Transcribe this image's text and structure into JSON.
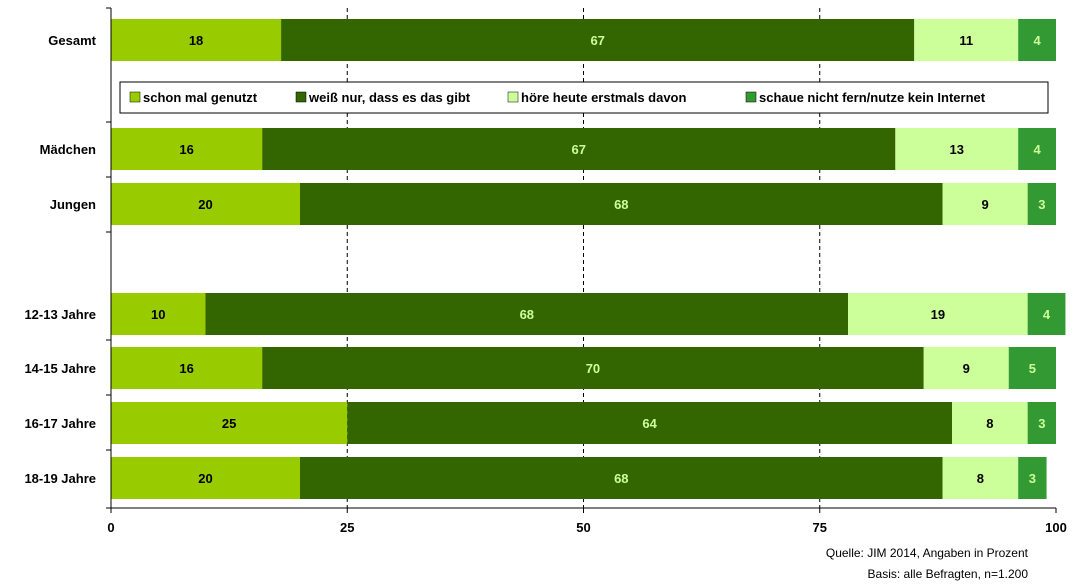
{
  "chart_data": {
    "type": "bar",
    "orientation": "horizontal",
    "stacked": true,
    "categories": [
      "Gesamt",
      "Mädchen",
      "Jungen",
      "12-13 Jahre",
      "14-15 Jahre",
      "16-17 Jahre",
      "18-19 Jahre"
    ],
    "series": [
      {
        "name": "schon mal genutzt",
        "color": "#99cc00",
        "label_color": "#000000",
        "values": [
          18,
          16,
          20,
          10,
          16,
          25,
          20
        ]
      },
      {
        "name": "weiß nur, dass es das gibt",
        "color": "#336600",
        "label_color": "#ccff99",
        "values": [
          67,
          67,
          68,
          68,
          70,
          64,
          68
        ]
      },
      {
        "name": "höre heute erstmals davon",
        "color": "#ccff99",
        "label_color": "#000000",
        "values": [
          11,
          13,
          9,
          19,
          9,
          8,
          8
        ]
      },
      {
        "name": "schaue nicht fern/nutze kein Internet",
        "color": "#339933",
        "label_color": "#ccff99",
        "values": [
          4,
          4,
          3,
          4,
          5,
          3,
          3
        ]
      }
    ],
    "xlim": [
      0,
      100
    ],
    "xticks": [
      0,
      25,
      50,
      75,
      100
    ],
    "grid": "vertical dashed at 25, 50, 75",
    "legend_position": "top, between first and second bar"
  },
  "source": {
    "line1": "Quelle: JIM 2014, Angaben in Prozent",
    "line2": "Basis: alle Befragten, n=1.200"
  }
}
